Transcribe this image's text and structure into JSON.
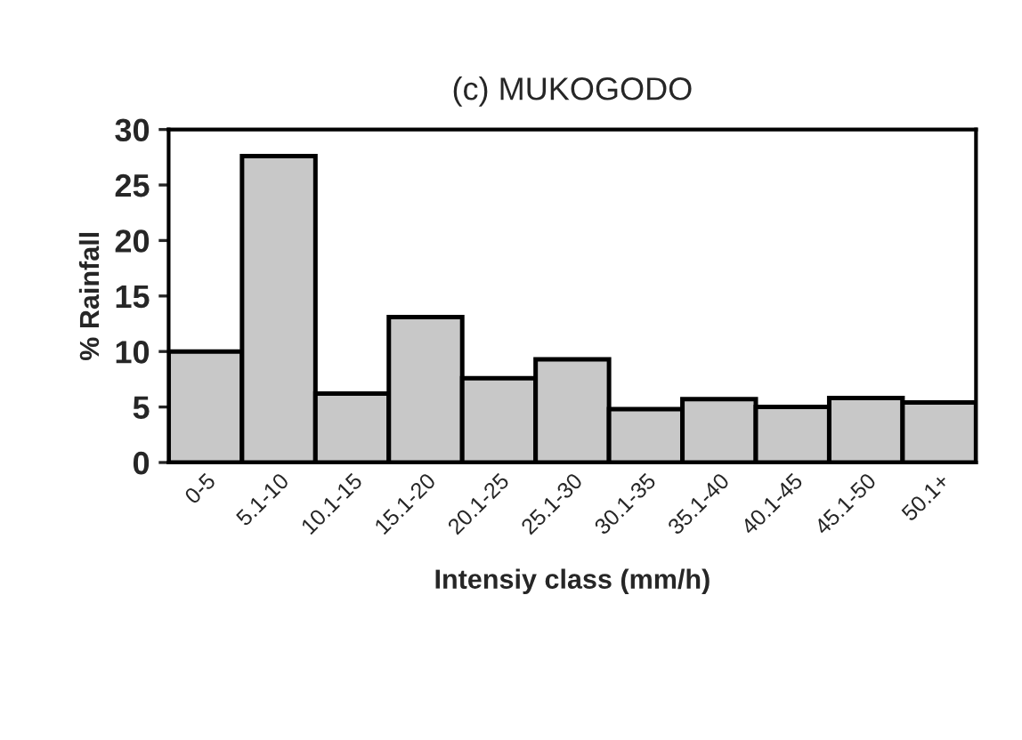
{
  "chart_data": {
    "type": "bar",
    "title": "(c) MUKOGODO",
    "xlabel": "Intensiy class (mm/h)",
    "ylabel": "% Rainfall",
    "categories": [
      "0-5",
      "5.1-10",
      "10.1-15",
      "15.1-20",
      "20.1-25",
      "25.1-30",
      "30.1-35",
      "35.1-40",
      "40.1-45",
      "45.1-50",
      "50.1+"
    ],
    "values": [
      10,
      27.6,
      6.2,
      13.1,
      7.6,
      9.3,
      4.8,
      5.7,
      5.0,
      5.8,
      5.4
    ],
    "color": "#c8c8c8",
    "ylim": [
      0,
      30
    ],
    "yticks": [
      0,
      5,
      10,
      15,
      20,
      25,
      30
    ],
    "grid": false,
    "legend": false
  }
}
